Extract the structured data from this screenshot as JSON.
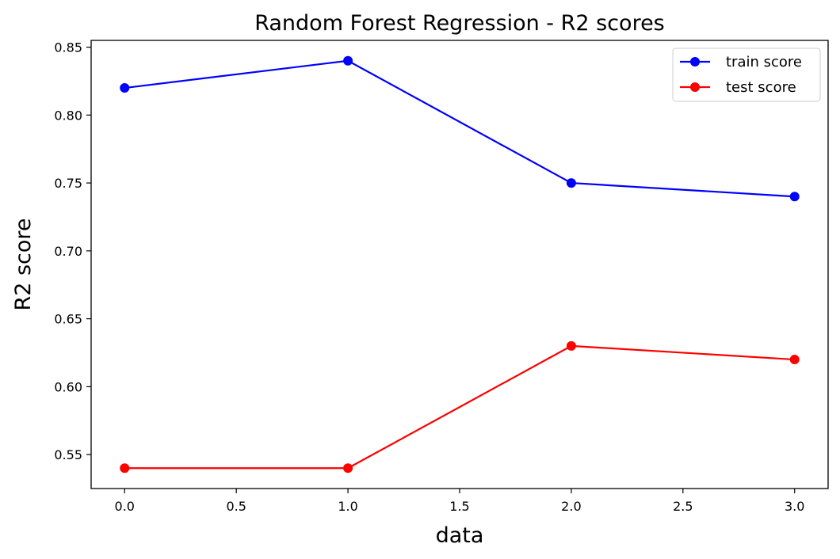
{
  "chart_data": {
    "type": "line",
    "title": "Random Forest Regression - R2 scores",
    "xlabel": "data",
    "ylabel": "R2 score",
    "x": [
      0,
      1,
      2,
      3
    ],
    "xlim": [
      -0.15,
      3.15
    ],
    "ylim": [
      0.525,
      0.855
    ],
    "xticks": [
      0.0,
      0.5,
      1.0,
      1.5,
      2.0,
      2.5,
      3.0
    ],
    "xtick_labels": [
      "0.0",
      "0.5",
      "1.0",
      "1.5",
      "2.0",
      "2.5",
      "3.0"
    ],
    "yticks": [
      0.55,
      0.6,
      0.65,
      0.7,
      0.75,
      0.8,
      0.85
    ],
    "ytick_labels": [
      "0.55",
      "0.60",
      "0.65",
      "0.70",
      "0.75",
      "0.80",
      "0.85"
    ],
    "grid": false,
    "legend_position": "top-right",
    "series": [
      {
        "name": "train score",
        "color": "#0000ff",
        "marker": "circle",
        "values": [
          0.82,
          0.84,
          0.75,
          0.74
        ]
      },
      {
        "name": "test score",
        "color": "#ff0000",
        "marker": "circle",
        "values": [
          0.54,
          0.54,
          0.63,
          0.62
        ]
      }
    ]
  }
}
